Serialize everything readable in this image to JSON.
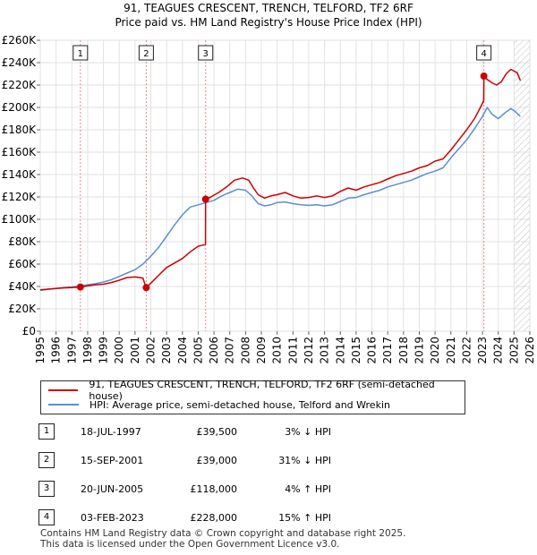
{
  "chart_data": {
    "type": "line",
    "title": "91, TEAGUES CRESCENT, TRENCH, TELFORD, TF2 6RF",
    "subtitle": "Price paid vs. HM Land Registry's House Price Index (HPI)",
    "xlabel": "",
    "ylabel": "",
    "xlim": [
      1995,
      2026
    ],
    "ylim": [
      0,
      260000
    ],
    "y_ticks": [
      0,
      20000,
      40000,
      60000,
      80000,
      100000,
      120000,
      140000,
      160000,
      180000,
      200000,
      220000,
      240000,
      260000
    ],
    "y_tick_labels": [
      "£0",
      "£20K",
      "£40K",
      "£60K",
      "£80K",
      "£100K",
      "£120K",
      "£140K",
      "£160K",
      "£180K",
      "£200K",
      "£220K",
      "£240K",
      "£260K"
    ],
    "x_ticks": [
      1995,
      1996,
      1997,
      1998,
      1999,
      2000,
      2001,
      2002,
      2003,
      2004,
      2005,
      2006,
      2007,
      2008,
      2009,
      2010,
      2011,
      2012,
      2013,
      2014,
      2015,
      2016,
      2017,
      2018,
      2019,
      2020,
      2021,
      2022,
      2023,
      2024,
      2025,
      2026
    ],
    "x_tick_labels": [
      "1995",
      "1996",
      "1997",
      "1998",
      "1999",
      "2000",
      "2001",
      "2002",
      "2003",
      "2004",
      "2005",
      "2006",
      "2007",
      "2008",
      "2009",
      "2010",
      "2011",
      "2012",
      "2013",
      "2014",
      "2015",
      "2016",
      "2017",
      "2018",
      "2019",
      "2020",
      "2021",
      "2022",
      "2023",
      "2024",
      "2025",
      "2026"
    ],
    "projection_start": 2025.0,
    "series": [
      {
        "name": "91, TEAGUES CRESCENT, TRENCH, TELFORD, TF2 6RF (semi-detached house)",
        "color": "#cc0000",
        "x": [
          1995.0,
          1995.5,
          1996.0,
          1996.5,
          1997.0,
          1997.54,
          1997.55,
          1998.0,
          1998.5,
          1999.0,
          1999.5,
          2000.0,
          2000.5,
          2001.0,
          2001.5,
          2001.7,
          2001.71,
          2002.0,
          2002.5,
          2003.0,
          2003.5,
          2004.0,
          2004.5,
          2005.0,
          2005.3,
          2005.46,
          2005.47,
          2005.8,
          2006.3,
          2006.8,
          2007.3,
          2007.8,
          2008.2,
          2008.5,
          2008.8,
          2009.2,
          2009.6,
          2010.0,
          2010.5,
          2011.0,
          2011.5,
          2012.0,
          2012.5,
          2013.0,
          2013.5,
          2014.0,
          2014.5,
          2015.0,
          2015.5,
          2016.0,
          2016.5,
          2017.0,
          2017.5,
          2018.0,
          2018.5,
          2019.0,
          2019.5,
          2020.0,
          2020.5,
          2021.0,
          2021.5,
          2022.0,
          2022.5,
          2022.8,
          2023.08,
          2023.09,
          2023.3,
          2023.6,
          2023.9,
          2024.2,
          2024.5,
          2024.8,
          2025.2,
          2025.4
        ],
        "values": [
          37000,
          37600,
          38200,
          38700,
          39000,
          39500,
          39500,
          40500,
          41500,
          42000,
          43500,
          45500,
          48000,
          48500,
          47500,
          39000,
          39000,
          43000,
          50000,
          57000,
          61000,
          65000,
          71000,
          76000,
          77000,
          77500,
          118000,
          120000,
          124000,
          129000,
          135000,
          137000,
          135000,
          128000,
          122000,
          119000,
          121000,
          122000,
          124000,
          121000,
          119000,
          119500,
          121000,
          119500,
          121000,
          125000,
          128000,
          126000,
          129000,
          131000,
          133000,
          136000,
          139000,
          141000,
          143000,
          146000,
          148000,
          152000,
          154000,
          162000,
          171000,
          180000,
          190000,
          198000,
          206000,
          228000,
          225000,
          222000,
          220000,
          223000,
          230000,
          234000,
          231000,
          224000
        ]
      },
      {
        "name": "HPI: Average price, semi-detached house, Telford and Wrekin",
        "color": "#5b8fd0",
        "x": [
          1995.0,
          1995.5,
          1996.0,
          1996.5,
          1997.0,
          1997.5,
          1998.0,
          1998.5,
          1999.0,
          1999.5,
          2000.0,
          2000.5,
          2001.0,
          2001.5,
          2002.0,
          2002.5,
          2003.0,
          2003.5,
          2004.0,
          2004.5,
          2005.0,
          2005.5,
          2006.0,
          2006.5,
          2007.0,
          2007.5,
          2008.0,
          2008.4,
          2008.8,
          2009.2,
          2009.6,
          2010.0,
          2010.5,
          2011.0,
          2011.5,
          2012.0,
          2012.5,
          2013.0,
          2013.5,
          2014.0,
          2014.5,
          2015.0,
          2015.5,
          2016.0,
          2016.5,
          2017.0,
          2017.5,
          2018.0,
          2018.5,
          2019.0,
          2019.5,
          2020.0,
          2020.5,
          2021.0,
          2021.5,
          2022.0,
          2022.5,
          2023.0,
          2023.3,
          2023.6,
          2024.0,
          2024.5,
          2024.8,
          2025.1,
          2025.4
        ],
        "values": [
          36500,
          37500,
          38200,
          39000,
          39500,
          40500,
          41500,
          42500,
          44000,
          46000,
          49000,
          52000,
          55000,
          60000,
          67000,
          75000,
          85000,
          95000,
          104000,
          111000,
          113000,
          115000,
          117000,
          121000,
          124000,
          127000,
          126000,
          121000,
          114000,
          112000,
          113000,
          115000,
          115500,
          114000,
          113000,
          112500,
          113000,
          112000,
          113000,
          116000,
          119000,
          119500,
          122000,
          124000,
          126000,
          129000,
          131000,
          133000,
          135000,
          138000,
          141000,
          143000,
          146000,
          155000,
          163000,
          171000,
          181000,
          192000,
          200000,
          194000,
          190000,
          196000,
          199000,
          196000,
          192000
        ]
      }
    ],
    "sales": [
      {
        "num": "1",
        "x": 1997.54,
        "value": 39500
      },
      {
        "num": "2",
        "x": 2001.71,
        "value": 39000
      },
      {
        "num": "3",
        "x": 2005.47,
        "value": 118000
      },
      {
        "num": "4",
        "x": 2023.09,
        "value": 228000
      }
    ]
  },
  "legend": [
    {
      "label": "91, TEAGUES CRESCENT, TRENCH, TELFORD, TF2 6RF (semi-detached house)",
      "color": "#cc0000"
    },
    {
      "label": "HPI: Average price, semi-detached house, Telford and Wrekin",
      "color": "#5b8fd0"
    }
  ],
  "transactions": [
    {
      "num": "1",
      "date": "18-JUL-1997",
      "price": "£39,500",
      "diff": "3% ↓ HPI"
    },
    {
      "num": "2",
      "date": "15-SEP-2001",
      "price": "£39,000",
      "diff": "31% ↓ HPI"
    },
    {
      "num": "3",
      "date": "20-JUN-2005",
      "price": "£118,000",
      "diff": "4% ↑ HPI"
    },
    {
      "num": "4",
      "date": "03-FEB-2023",
      "price": "£228,000",
      "diff": "15% ↑ HPI"
    }
  ],
  "footer": {
    "line1": "Contains HM Land Registry data © Crown copyright and database right 2025.",
    "line2": "This data is licensed under the Open Government Licence v3.0."
  }
}
